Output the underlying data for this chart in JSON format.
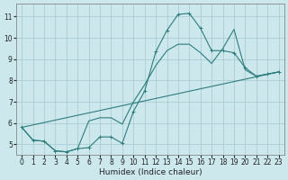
{
  "xlabel": "Humidex (Indice chaleur)",
  "bg_color": "#cce8ec",
  "grid_color": "#aacdd4",
  "line_color": "#2e7d7d",
  "xlim": [
    -0.5,
    23.5
  ],
  "ylim": [
    4.5,
    11.6
  ],
  "yticks": [
    5,
    6,
    7,
    8,
    9,
    10,
    11
  ],
  "xticks": [
    0,
    1,
    2,
    3,
    4,
    5,
    6,
    7,
    8,
    9,
    10,
    11,
    12,
    13,
    14,
    15,
    16,
    17,
    18,
    19,
    20,
    21,
    22,
    23
  ],
  "line1_x": [
    0,
    1,
    2,
    3,
    4,
    5,
    6,
    7,
    8,
    9,
    10,
    11,
    12,
    13,
    14,
    15,
    16,
    17,
    18,
    19,
    20,
    21,
    22,
    23
  ],
  "line1_y": [
    5.8,
    5.2,
    5.15,
    4.7,
    4.65,
    4.8,
    4.85,
    5.35,
    5.35,
    5.05,
    6.55,
    7.5,
    9.35,
    10.35,
    11.1,
    11.15,
    10.45,
    9.4,
    9.4,
    9.3,
    8.6,
    8.2,
    8.3,
    8.4
  ],
  "line2_x": [
    0,
    23
  ],
  "line2_y": [
    5.8,
    8.4
  ],
  "line3_x": [
    0,
    1,
    2,
    3,
    4,
    5,
    6,
    7,
    8,
    9,
    10,
    11,
    12,
    13,
    14,
    15,
    16,
    17,
    18,
    19,
    20,
    21,
    22,
    23
  ],
  "line3_y": [
    5.8,
    5.2,
    5.15,
    4.7,
    4.65,
    4.8,
    6.1,
    6.25,
    6.25,
    5.95,
    7.0,
    7.8,
    8.7,
    9.4,
    9.7,
    9.7,
    9.3,
    8.8,
    9.5,
    10.4,
    8.5,
    8.2,
    8.3,
    8.4
  ],
  "xlabel_fontsize": 6.5,
  "tick_fontsize": 5.5
}
